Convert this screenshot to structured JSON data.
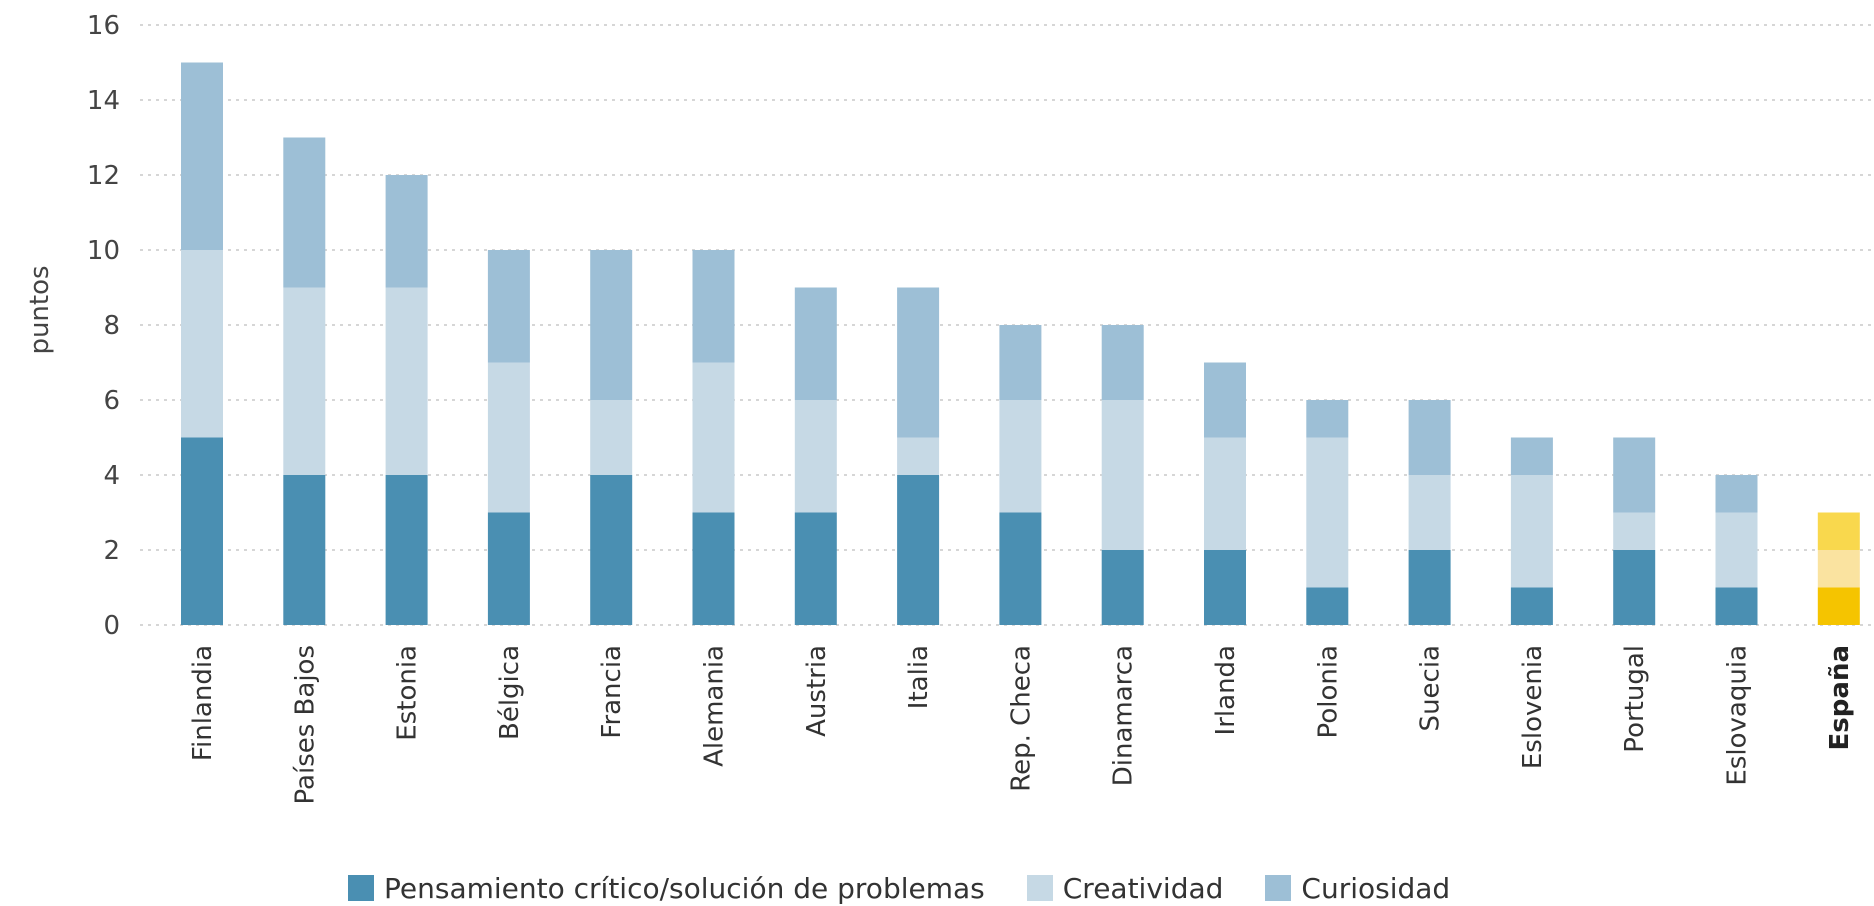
{
  "chart_data": {
    "type": "bar",
    "stacked": true,
    "ylabel": "puntos",
    "ylim": [
      0,
      16
    ],
    "yticks": [
      0,
      2,
      4,
      6,
      8,
      10,
      12,
      14,
      16
    ],
    "grid": "horizontal dotted",
    "legend_position": "bottom",
    "categories": [
      "Finlandia",
      "Países Bajos",
      "Estonia",
      "Bélgica",
      "Francia",
      "Alemania",
      "Austria",
      "Italia",
      "Rep. Checa",
      "Dinamarca",
      "Irlanda",
      "Polonia",
      "Suecia",
      "Eslovenia",
      "Portugal",
      "Eslovaquia",
      "España"
    ],
    "highlight_category": "España",
    "series": [
      {
        "name": "Pensamiento crítico/solución de problemas",
        "color": "#4a8fb2",
        "highlight_color": "#f5c400",
        "values": [
          5,
          4,
          4,
          3,
          4,
          3,
          3,
          4,
          3,
          2,
          2,
          1,
          2,
          1,
          2,
          1,
          1
        ]
      },
      {
        "name": "Creatividad",
        "color": "#c6d9e5",
        "highlight_color": "#fae3a0",
        "values": [
          5,
          5,
          5,
          4,
          2,
          4,
          3,
          1,
          3,
          4,
          3,
          4,
          2,
          3,
          1,
          2,
          1
        ]
      },
      {
        "name": "Curiosidad",
        "color": "#9dbfd6",
        "highlight_color": "#f9d84d",
        "values": [
          5,
          4,
          3,
          3,
          4,
          3,
          3,
          4,
          2,
          2,
          2,
          1,
          2,
          1,
          2,
          1,
          1
        ]
      }
    ]
  }
}
